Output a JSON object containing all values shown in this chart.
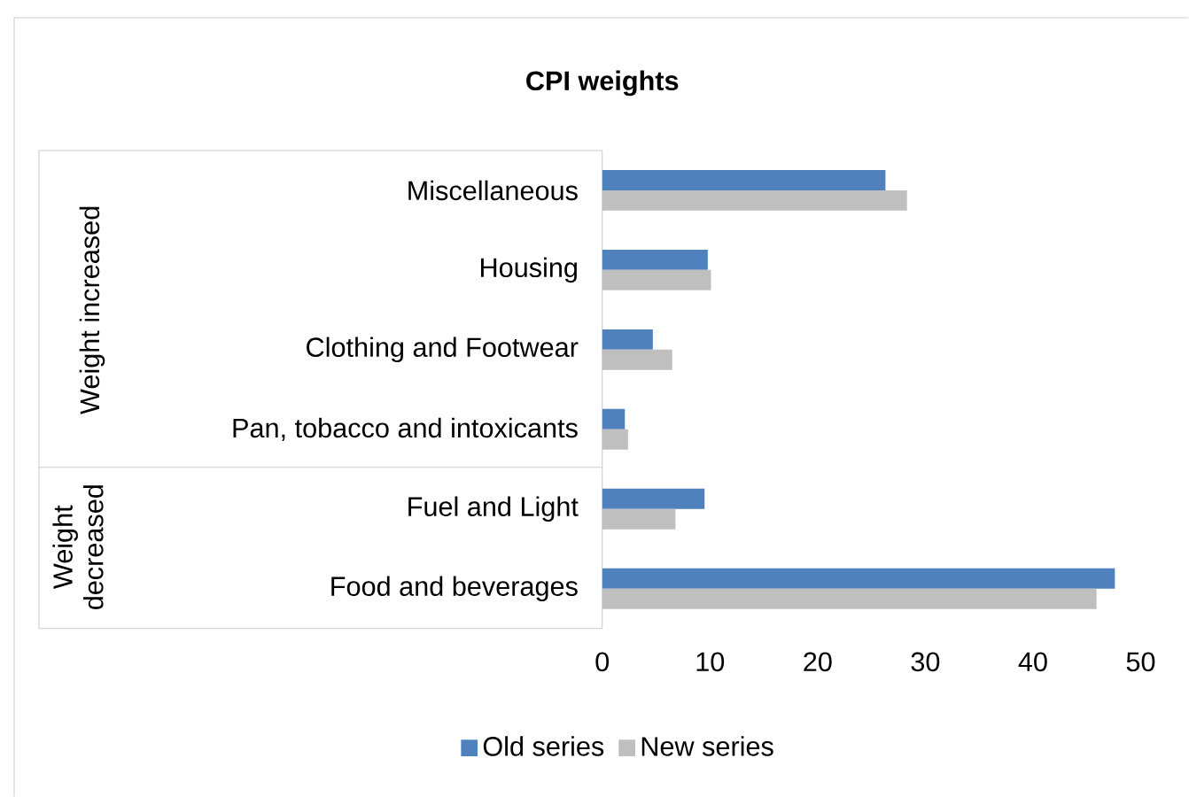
{
  "chart_data": {
    "type": "bar",
    "orientation": "horizontal",
    "title": "CPI weights",
    "categories": [
      "Miscellaneous",
      "Housing",
      "Clothing and Footwear",
      "Pan, tobacco and intoxicants",
      "Fuel and Light",
      "Food and beverages"
    ],
    "series": [
      {
        "name": "Old series",
        "color": "#4f81bd",
        "values": [
          26.3,
          9.8,
          4.7,
          2.1,
          9.5,
          47.6
        ]
      },
      {
        "name": "New series",
        "color": "#bfbfbf",
        "values": [
          28.3,
          10.1,
          6.5,
          2.4,
          6.8,
          45.9
        ]
      }
    ],
    "xlim": [
      0,
      50
    ],
    "xticks": [
      0,
      10,
      20,
      30,
      40,
      50
    ],
    "annotations": [
      "Weight increased",
      "Weight decreased"
    ],
    "legend": "bottom"
  }
}
